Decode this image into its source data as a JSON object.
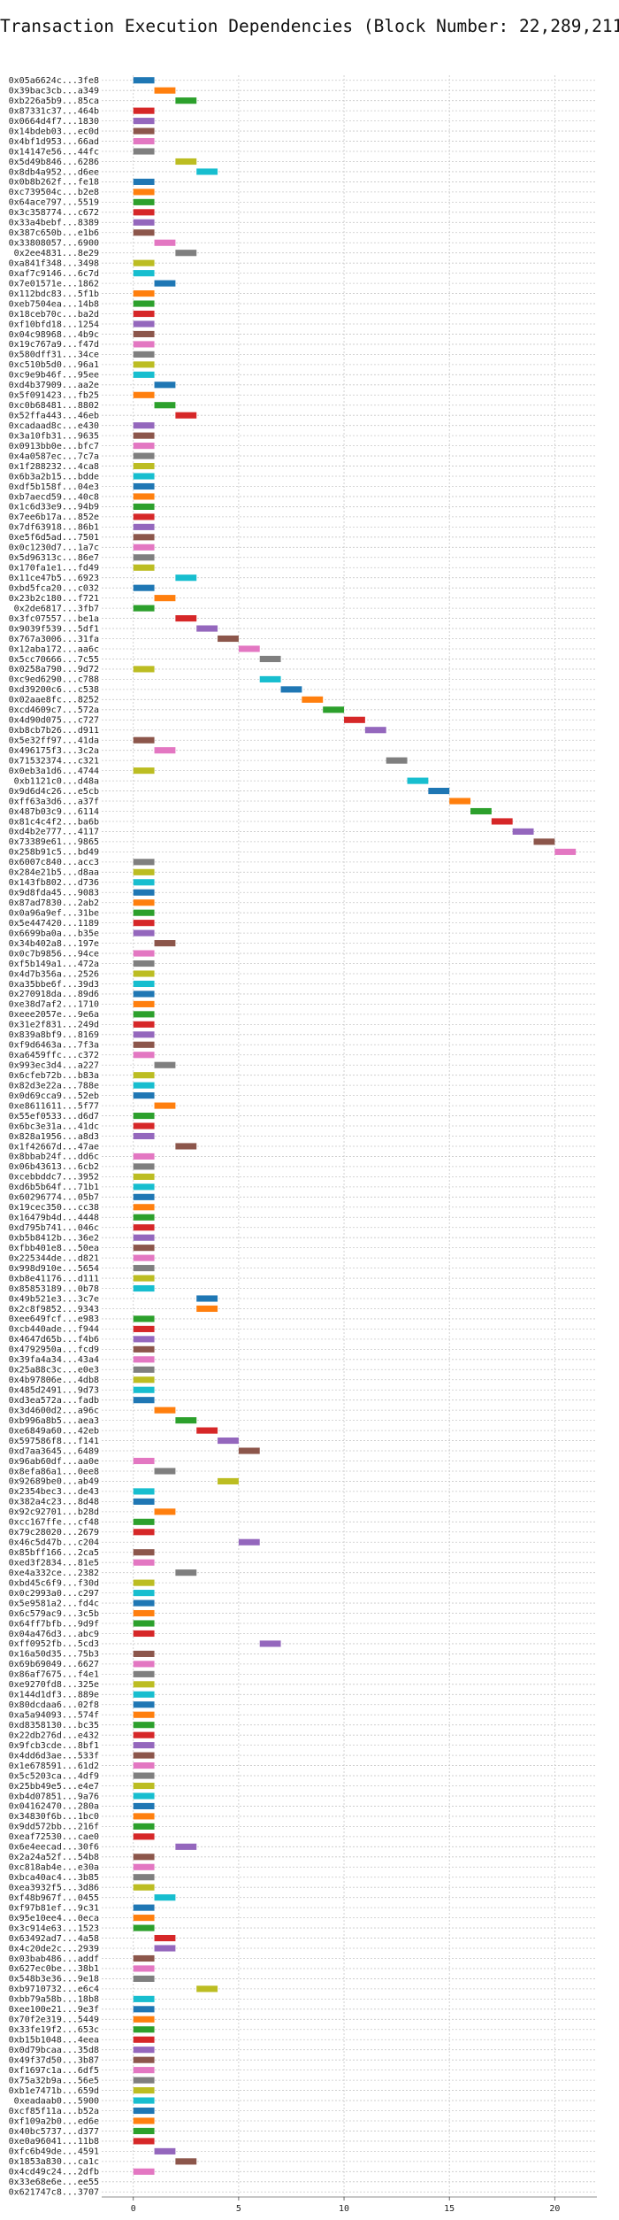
{
  "chart_data": {
    "type": "bar",
    "orientation": "horizontal",
    "bar_style": "gantt",
    "title": "Transaction Execution Dependencies (Block Number: 22,289,211)",
    "xlabel": "",
    "ylabel": "",
    "xlim": [
      -1.5,
      22
    ],
    "xticks": [
      0,
      5,
      10,
      15,
      20
    ],
    "grid": true,
    "legend": "none",
    "colors": [
      "#1f77b4",
      "#ff7f0e",
      "#2ca02c",
      "#d62728",
      "#9467bd",
      "#8c564b",
      "#e377c2",
      "#7f7f7f",
      "#bcbd22",
      "#17becf"
    ],
    "categories": [
      "0x05a6624c...3fe8",
      "0x39bac3cb...a349",
      "0xb226a5b9...85ca",
      "0x87331c37...464b",
      "0x0664d4f7...1830",
      "0x14bdeb03...ec0d",
      "0x4bf1d953...66ad",
      "0x14147e56...44fc",
      "0x5d49b846...6286",
      "0x8db4a952...d6ee",
      "0x0b8b262f...fe18",
      "0xc739504c...b2e8",
      "0x64ace797...5519",
      "0x3c358774...c672",
      "0x33a4bebf...8389",
      "0x387c650b...e1b6",
      "0x33808057...6900",
      "0x2ee4831...8e29",
      "0xa841f348...3498",
      "0xaf7c9146...6c7d",
      "0x7e01571e...1862",
      "0x112bdc83...5f1b",
      "0xeb7504ea...14b8",
      "0x18ceb70c...ba2d",
      "0xf10bfd18...1254",
      "0x04c98968...4b9c",
      "0x19c767a9...f47d",
      "0x580dff31...34ce",
      "0xc510b5d0...96a1",
      "0xc9e9b46f...95ee",
      "0xd4b37909...aa2e",
      "0x5f091423...fb25",
      "0xc0b68481...8802",
      "0x52ffa443...46eb",
      "0xcadaad8c...e430",
      "0x3a10fb31...9635",
      "0x0913bb0e...bfc7",
      "0x4a0587ec...7c7a",
      "0x1f288232...4ca8",
      "0x6b3a2b15...bdde",
      "0xdf5b158f...04e3",
      "0xb7aecd59...40c8",
      "0x1c6d33e9...94b9",
      "0x7ee6b17a...852e",
      "0x7df63918...86b1",
      "0xe5f6d5ad...7501",
      "0x0c1230d7...1a7c",
      "0x5d96313c...86e7",
      "0x170fa1e1...fd49",
      "0x11ce47b5...6923",
      "0xbd5fca20...c032",
      "0x23b2c180...f721",
      "0x2de6817...3fb7",
      "0x3fc07557...be1a",
      "0x9039f539...5df1",
      "0x767a3006...31fa",
      "0x12aba172...aa6c",
      "0x5cc70666...7c55",
      "0x0258a790...9d72",
      "0xc9ed6290...c788",
      "0xd39200c6...c538",
      "0x02aae8fc...8252",
      "0xcd4609c7...572a",
      "0x4d90d075...c727",
      "0xb8cb7b26...d911",
      "0x5e32ff97...41da",
      "0x496175f3...3c2a",
      "0x71532374...c321",
      "0x0eb3a1d6...4744",
      "0xb1121c0...d48a",
      "0x9d6d4c26...e5cb",
      "0xff63a3d6...a37f",
      "0x487b03c9...6114",
      "0x81c4c4f2...ba6b",
      "0xd4b2e777...4117",
      "0x73389e61...9865",
      "0x258b91c5...bd49",
      "0x6007c840...acc3",
      "0x284e21b5...d8aa",
      "0x143fb802...d736",
      "0x9d8fda45...9083",
      "0x87ad7830...2ab2",
      "0x0a96a9ef...31be",
      "0x5e447420...1189",
      "0x6699ba0a...b35e",
      "0x34b402a8...197e",
      "0x0c7b9856...94ce",
      "0xf5b149a1...472a",
      "0x4d7b356a...2526",
      "0xa35bbe6f...39d3",
      "0x270918da...89d6",
      "0xe38d7af2...1710",
      "0xeee2057e...9e6a",
      "0x31e2f831...249d",
      "0x839a8bf9...8169",
      "0xf9d6463a...7f3a",
      "0xa6459ffc...c372",
      "0x993ec3d4...a227",
      "0x6cfeb72b...b83a",
      "0x82d3e22a...788e",
      "0x0d69cca9...52eb",
      "0xe8611611...5f77",
      "0x55ef0533...d6d7",
      "0x6bc3e31a...41dc",
      "0x828a1956...a8d3",
      "0x1f42667d...47ae",
      "0x8bbab24f...dd6c",
      "0x06b43613...6cb2",
      "0xcebbddc7...3952",
      "0xd6b5b64f...71b1",
      "0x60296774...05b7",
      "0x19cec350...cc38",
      "0x16479b4d...4448",
      "0xd795b741...046c",
      "0xb5b8412b...36e2",
      "0xfbb401e8...50ea",
      "0x225344de...d821",
      "0x998d910e...5654",
      "0xb8e41176...d111",
      "0x85853189...0b78",
      "0x49b521e3...3c7e",
      "0x2c8f9852...9343",
      "0xee649fcf...e983",
      "0xcb440ade...f944",
      "0x4647d65b...f4b6",
      "0x4792950a...fcd9",
      "0x39fa4a34...43a4",
      "0x25a88c3c...e0e3",
      "0x4b97806e...4db8",
      "0x485d2491...9d73",
      "0xd3ea572a...fadb",
      "0x3d4600d2...a96c",
      "0xb996a8b5...aea3",
      "0xe6849a60...42eb",
      "0x597586f8...f141",
      "0xd7aa3645...6489",
      "0x96ab60df...aa0e",
      "0x8efa86a1...0ee8",
      "0x92689be0...ab49",
      "0x2354bec3...de43",
      "0x382a4c23...8d48",
      "0x92c92701...b28d",
      "0xcc167ffe...cf48",
      "0x79c28020...2679",
      "0x46c5d47b...c204",
      "0x85bff166...2ca5",
      "0xed3f2834...81e5",
      "0xe4a332ce...2382",
      "0xbd45c6f9...f30d",
      "0x0c2993a0...c297",
      "0x5e9581a2...fd4c",
      "0x6c579ac9...3c5b",
      "0x64ff7bfb...9d9f",
      "0x04a476d3...abc9",
      "0xff0952fb...5cd3",
      "0x16a50d35...75b3",
      "0x69b69049...6627",
      "0x86af7675...f4e1",
      "0xe9270fd8...325e",
      "0x144d1df3...889e",
      "0x80dcdaa6...02f8",
      "0xa5a94093...574f",
      "0xd8358130...bc35",
      "0x22db276d...e432",
      "0x9fcb3cde...8bf1",
      "0x4dd6d3ae...533f",
      "0x1e678591...61d2",
      "0x5c5203ca...4df9",
      "0x25bb49e5...e4e7",
      "0xb4d07851...9a76",
      "0x04162470...280a",
      "0x34830f6b...1bc0",
      "0x9dd572bb...216f",
      "0xeaf72530...cae0",
      "0x6e4eecad...30f6",
      "0x2a24a52f...54b8",
      "0xc818ab4e...e30a",
      "0xbca40ac4...3b85",
      "0xea3932f5...3d86",
      "0xf48b967f...0455",
      "0xf97b81ef...9c31",
      "0x95e10ee4...0eca",
      "0x3c914e63...1523",
      "0x63492ad7...4a58",
      "0x4c20de2c...2939",
      "0x03bab486...addf",
      "0x627ec0be...38b1",
      "0x548b3e36...9e18",
      "0xb9710732...e6c4",
      "0xbb79a58b...18b8",
      "0xee100e21...9e3f",
      "0x70f2e319...5449",
      "0x33fe19f2...653c",
      "0xb15b1048...4eea",
      "0x0d79bcaa...35d8",
      "0x49f37d50...3b87",
      "0xf1697c1a...6df5",
      "0x75a32b9a...56e5",
      "0xb1e7471b...659d",
      "0xeadaab0...5900",
      "0xcf85f11a...b52a",
      "0xf109a2b0...ed6e",
      "0x40bc5737...d377",
      "0xe0a96041...11b8",
      "0xfc6b49de...4591",
      "0x1853a830...ca1c",
      "0x4cd49c24...2dfb",
      "0x33e68e6e...ee55",
      "0x621747c8...3707"
    ],
    "start": [
      0,
      1,
      2,
      0,
      0,
      0,
      0,
      0,
      2,
      3,
      0,
      0,
      0,
      0,
      0,
      0,
      1,
      2,
      0,
      0,
      1,
      0,
      0,
      0,
      0,
      0,
      0,
      0,
      0,
      0,
      1,
      0,
      1,
      2,
      0,
      0,
      0,
      0,
      0,
      0,
      0,
      0,
      0,
      0,
      0,
      0,
      0,
      0,
      0,
      2,
      0,
      1,
      0,
      2,
      3,
      4,
      5,
      6,
      0,
      6,
      7,
      8,
      9,
      10,
      11,
      0,
      1,
      12,
      0,
      13,
      14,
      15,
      16,
      17,
      18,
      19,
      20,
      0,
      0,
      0,
      0,
      0,
      0,
      0,
      0,
      1,
      0,
      0,
      0,
      0,
      0,
      0,
      0,
      0,
      0,
      0,
      0,
      1,
      0,
      0,
      0,
      1,
      0,
      0,
      0,
      2,
      0,
      0,
      0,
      0,
      0,
      0,
      0,
      0,
      0,
      0,
      0,
      0,
      0,
      0,
      3,
      3,
      0,
      0,
      0,
      0,
      0,
      0,
      0,
      0,
      0,
      1,
      2,
      3,
      4,
      5,
      0,
      1,
      4,
      0,
      0,
      1,
      0,
      0,
      5,
      0,
      0,
      2,
      0,
      0,
      0,
      0,
      0,
      0,
      6,
      0,
      0,
      0,
      0,
      0,
      0,
      0,
      0,
      0,
      0,
      0,
      0,
      0,
      0,
      0,
      0,
      0,
      0,
      0,
      2,
      0,
      0,
      0,
      0,
      1,
      0,
      0,
      0,
      1,
      1,
      0,
      0,
      0,
      3,
      0,
      0,
      0,
      0,
      0,
      0,
      0,
      0,
      0,
      0,
      0,
      0,
      0,
      0,
      0,
      1,
      2,
      0
    ],
    "end": [
      1,
      2,
      3,
      1,
      1,
      1,
      1,
      1,
      3,
      4,
      1,
      1,
      1,
      1,
      1,
      1,
      2,
      3,
      1,
      1,
      2,
      1,
      1,
      1,
      1,
      1,
      1,
      1,
      1,
      1,
      2,
      1,
      2,
      3,
      1,
      1,
      1,
      1,
      1,
      1,
      1,
      1,
      1,
      1,
      1,
      1,
      1,
      1,
      1,
      3,
      1,
      2,
      1,
      3,
      4,
      5,
      6,
      7,
      1,
      7,
      8,
      9,
      10,
      11,
      12,
      1,
      2,
      13,
      1,
      14,
      15,
      16,
      17,
      18,
      19,
      20,
      21,
      1,
      1,
      1,
      1,
      1,
      1,
      1,
      1,
      2,
      1,
      1,
      1,
      1,
      1,
      1,
      1,
      1,
      1,
      1,
      1,
      2,
      1,
      1,
      1,
      2,
      1,
      1,
      1,
      3,
      1,
      1,
      1,
      1,
      1,
      1,
      1,
      1,
      1,
      1,
      1,
      1,
      1,
      1,
      4,
      4,
      1,
      1,
      1,
      1,
      1,
      1,
      1,
      1,
      1,
      2,
      3,
      4,
      5,
      6,
      1,
      2,
      5,
      1,
      1,
      2,
      1,
      1,
      6,
      1,
      1,
      3,
      1,
      1,
      1,
      1,
      1,
      1,
      7,
      1,
      1,
      1,
      1,
      1,
      1,
      1,
      1,
      1,
      1,
      1,
      1,
      1,
      1,
      1,
      1,
      1,
      1,
      1,
      3,
      1,
      1,
      1,
      1,
      2,
      1,
      1,
      1,
      2,
      2,
      1,
      1,
      1,
      4,
      1,
      1,
      1,
      1,
      1,
      1,
      1,
      1,
      1,
      1,
      1,
      1,
      1,
      1,
      1,
      2,
      3,
      1
    ]
  }
}
